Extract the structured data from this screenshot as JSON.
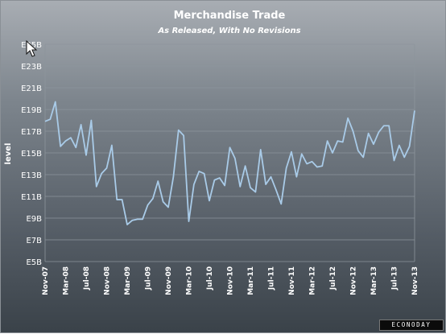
{
  "chart_data": {
    "type": "line",
    "title": "Merchandise Trade",
    "subtitle": "As Released, With No Revisions",
    "ylabel": "level",
    "xlabel": "",
    "ylim": [
      5,
      25
    ],
    "y_ticks": [
      {
        "value": 5,
        "label": "E5B"
      },
      {
        "value": 7,
        "label": "E7B"
      },
      {
        "value": 9,
        "label": "E9B"
      },
      {
        "value": 11,
        "label": "E11B"
      },
      {
        "value": 13,
        "label": "E13B"
      },
      {
        "value": 15,
        "label": "E15B"
      },
      {
        "value": 17,
        "label": "E17B"
      },
      {
        "value": 19,
        "label": "E19B"
      },
      {
        "value": 21,
        "label": "E21B"
      },
      {
        "value": 23,
        "label": "E23B"
      },
      {
        "value": 25,
        "label": "E25B"
      }
    ],
    "x_ticks": [
      {
        "index": 0,
        "label": "Nov-07"
      },
      {
        "index": 4,
        "label": "Mar-08"
      },
      {
        "index": 8,
        "label": "Jul-08"
      },
      {
        "index": 12,
        "label": "Nov-08"
      },
      {
        "index": 16,
        "label": "Mar-09"
      },
      {
        "index": 20,
        "label": "Jul-09"
      },
      {
        "index": 24,
        "label": "Nov-09"
      },
      {
        "index": 28,
        "label": "Mar-10"
      },
      {
        "index": 32,
        "label": "Jul-10"
      },
      {
        "index": 36,
        "label": "Nov-10"
      },
      {
        "index": 40,
        "label": "Mar-11"
      },
      {
        "index": 44,
        "label": "Jul-11"
      },
      {
        "index": 48,
        "label": "Nov-11"
      },
      {
        "index": 52,
        "label": "Mar-12"
      },
      {
        "index": 56,
        "label": "Jul-12"
      },
      {
        "index": 60,
        "label": "Nov-12"
      },
      {
        "index": 64,
        "label": "Mar-13"
      },
      {
        "index": 68,
        "label": "Jul-13"
      },
      {
        "index": 72,
        "label": "Nov-13"
      }
    ],
    "grid": true,
    "legend": "none",
    "series": [
      {
        "color": "#a9cbe8",
        "values": [
          17.9,
          18.1,
          19.7,
          15.6,
          16.1,
          16.4,
          15.5,
          17.6,
          14.8,
          18.0,
          11.9,
          13.1,
          13.6,
          15.7,
          10.7,
          10.7,
          8.4,
          8.8,
          8.9,
          8.9,
          10.2,
          10.8,
          12.4,
          10.5,
          10.0,
          12.8,
          17.1,
          16.6,
          8.7,
          12.1,
          13.3,
          13.1,
          10.6,
          12.5,
          12.7,
          12.0,
          15.5,
          14.5,
          11.9,
          13.8,
          11.8,
          11.4,
          15.3,
          12.1,
          12.8,
          11.6,
          10.3,
          13.6,
          15.1,
          12.8,
          14.9,
          14.0,
          14.2,
          13.7,
          13.8,
          16.1,
          15.0,
          16.1,
          16.0,
          18.2,
          17.0,
          15.2,
          14.6,
          16.8,
          15.8,
          16.9,
          17.5,
          17.5,
          14.3,
          15.7,
          14.6,
          15.6,
          18.9
        ]
      }
    ]
  },
  "branding": {
    "label": "ECONODAY"
  }
}
